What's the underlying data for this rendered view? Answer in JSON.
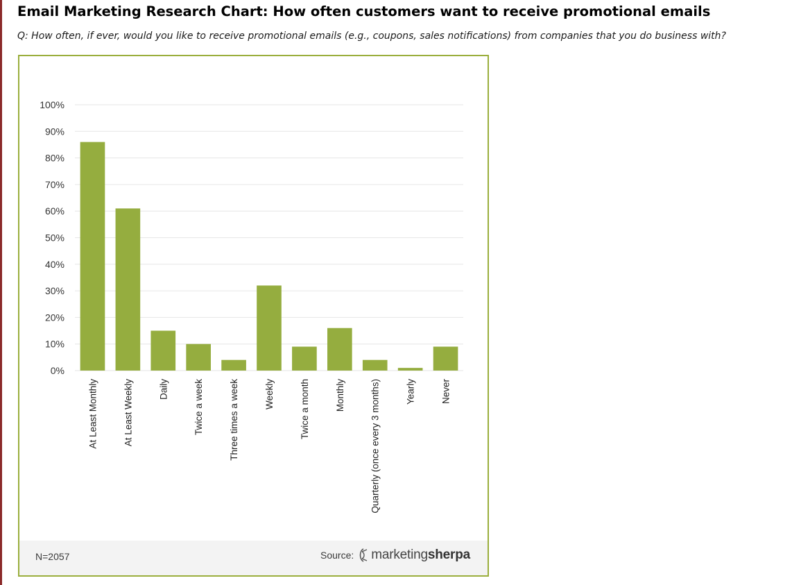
{
  "page": {
    "title": "Email Marketing Research Chart: How often customers want to receive promotional emails",
    "question": "Q: How often, if ever, would you like to receive promotional emails (e.g., coupons, sales notifications) from companies that you do business with?"
  },
  "chart_data": {
    "type": "bar",
    "title": "",
    "xlabel": "",
    "ylabel": "",
    "categories": [
      "At Least Monthly",
      "At Least Weekly",
      "Daily",
      "Twice a week",
      "Three times a week",
      "Weekly",
      "Twice a month",
      "Monthly",
      "Quarterly (once every 3 months)",
      "Yearly",
      "Never"
    ],
    "values": [
      86,
      61,
      15,
      10,
      4,
      32,
      9,
      16,
      4,
      1,
      9
    ],
    "ylim": [
      0,
      100
    ],
    "yticks": [
      0,
      10,
      20,
      30,
      40,
      50,
      60,
      70,
      80,
      90,
      100
    ],
    "ytick_labels": [
      "0%",
      "10%",
      "20%",
      "30%",
      "40%",
      "50%",
      "60%",
      "70%",
      "80%",
      "90%",
      "100%"
    ],
    "grid": true,
    "legend": "none",
    "bar_color": "#95ad3f",
    "grid_color": "#e6e6e6"
  },
  "footer": {
    "sample_size": "N=2057",
    "source_label": "Source:",
    "logo_part1": "marketing",
    "logo_part2": "sherpa"
  },
  "colors": {
    "frame_border": "#9aae3c",
    "accent_rule": "#8b2a2a"
  }
}
